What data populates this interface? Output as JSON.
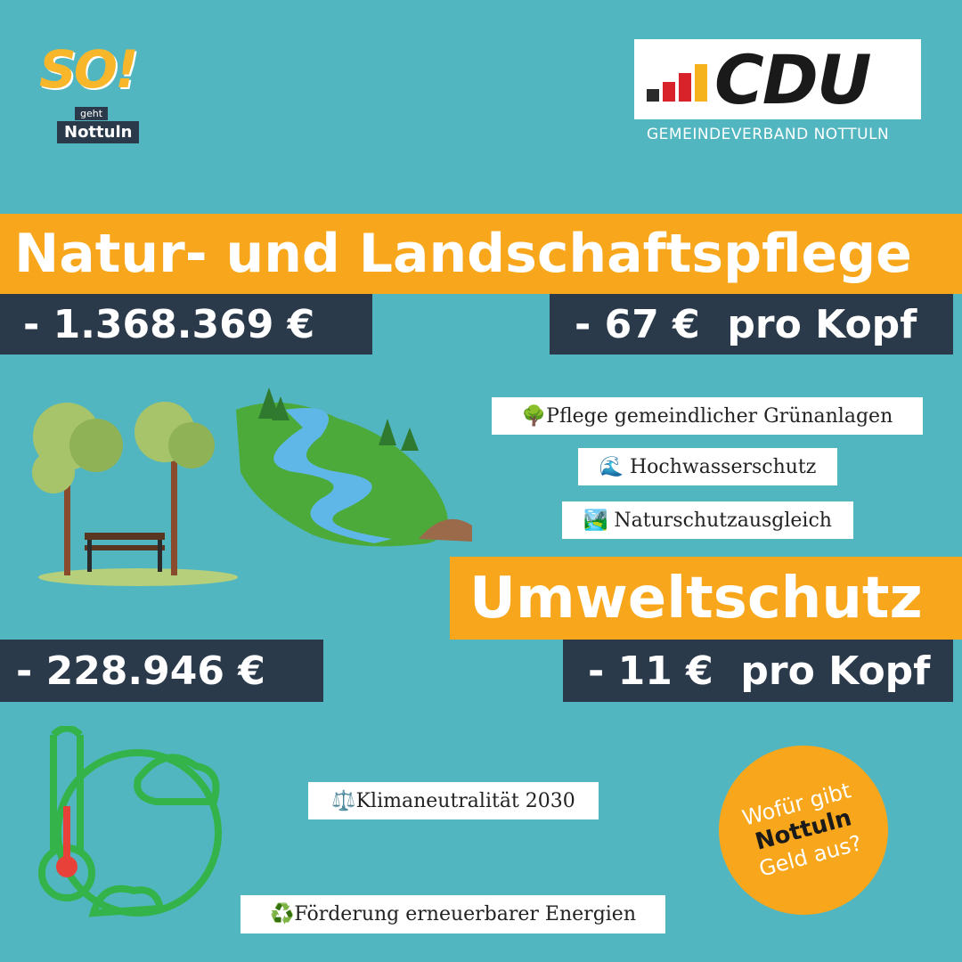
{
  "logo": {
    "wordmark": "SO!",
    "small": "geht",
    "place": "Nottuln"
  },
  "party": {
    "name": "CDU",
    "subtitle": "GEMEINDEVERBAND NOTTULN"
  },
  "section1": {
    "title": "Natur- und Landschaftspflege",
    "total": "- 1.368.369 €",
    "per_capita": "- 67 €  pro Kopf",
    "items": [
      "🌳Pflege gemeindlicher Grünanlagen",
      "🌊 Hochwasserschutz",
      "🏞️ Naturschutzausgleich"
    ]
  },
  "section2": {
    "title": "Umweltschutz",
    "total": "- 228.946 €",
    "per_capita": "- 11 €  pro Kopf",
    "items": [
      "⚖️Klimaneutralität 2030",
      "♻️Förderung erneuerbarer Energien"
    ]
  },
  "badge": {
    "line1": "Wofür gibt",
    "line2": "Nottuln",
    "line3": "Geld aus?"
  }
}
